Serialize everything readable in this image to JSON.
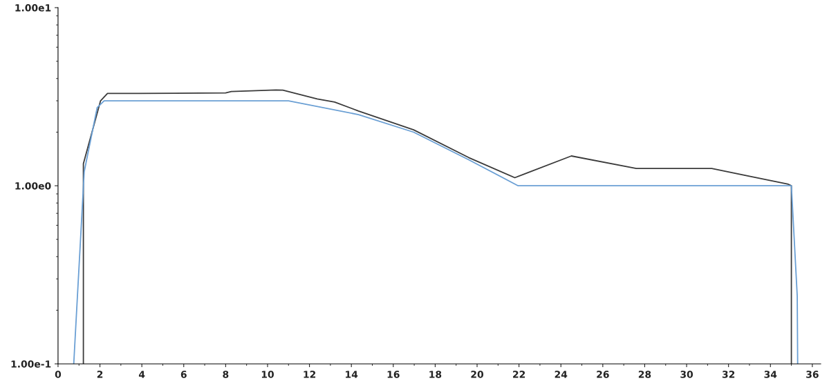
{
  "chart_data": {
    "type": "line",
    "log": "y",
    "grid": false,
    "legend": false,
    "marker": "none",
    "line_style": "solid",
    "xlim": [
      0,
      36.4
    ],
    "xticks": [
      0,
      2,
      4,
      6,
      8,
      10,
      12,
      14,
      16,
      18,
      20,
      22,
      24,
      26,
      28,
      30,
      32,
      34,
      36
    ],
    "ylim": [
      0.1,
      10
    ],
    "yticks": [
      {
        "value": 0.1,
        "label": "1.00e-1"
      },
      {
        "value": 1,
        "label": "1.00e0"
      },
      {
        "value": 10,
        "label": "1.00e1"
      }
    ],
    "series": [
      {
        "color": "#3a3a3a",
        "x": [
          1.21,
          1.21,
          2.03,
          2.36,
          3.84,
          8.0,
          8.27,
          10.4,
          10.73,
          12.37,
          13.2,
          14.34,
          16.97,
          19.6,
          21.8,
          24.5,
          27.6,
          31.2,
          34.85,
          35.0,
          35.0
        ],
        "values": [
          0.1,
          1.33,
          3.0,
          3.3,
          3.3,
          3.32,
          3.38,
          3.45,
          3.44,
          3.07,
          2.95,
          2.63,
          2.06,
          1.44,
          1.11,
          1.47,
          1.25,
          1.25,
          1.02,
          1.0,
          0.1
        ]
      },
      {
        "color": "#6a9fd4",
        "x": [
          0.75,
          1.25,
          1.87,
          2.2,
          11.0,
          14.34,
          16.97,
          19.6,
          21.96,
          34.85,
          35.0,
          35.28,
          35.3
        ],
        "values": [
          0.1,
          1.2,
          2.75,
          3.0,
          3.0,
          2.51,
          2.0,
          1.4,
          1.0,
          1.0,
          1.0,
          0.24,
          0.1
        ]
      }
    ]
  }
}
